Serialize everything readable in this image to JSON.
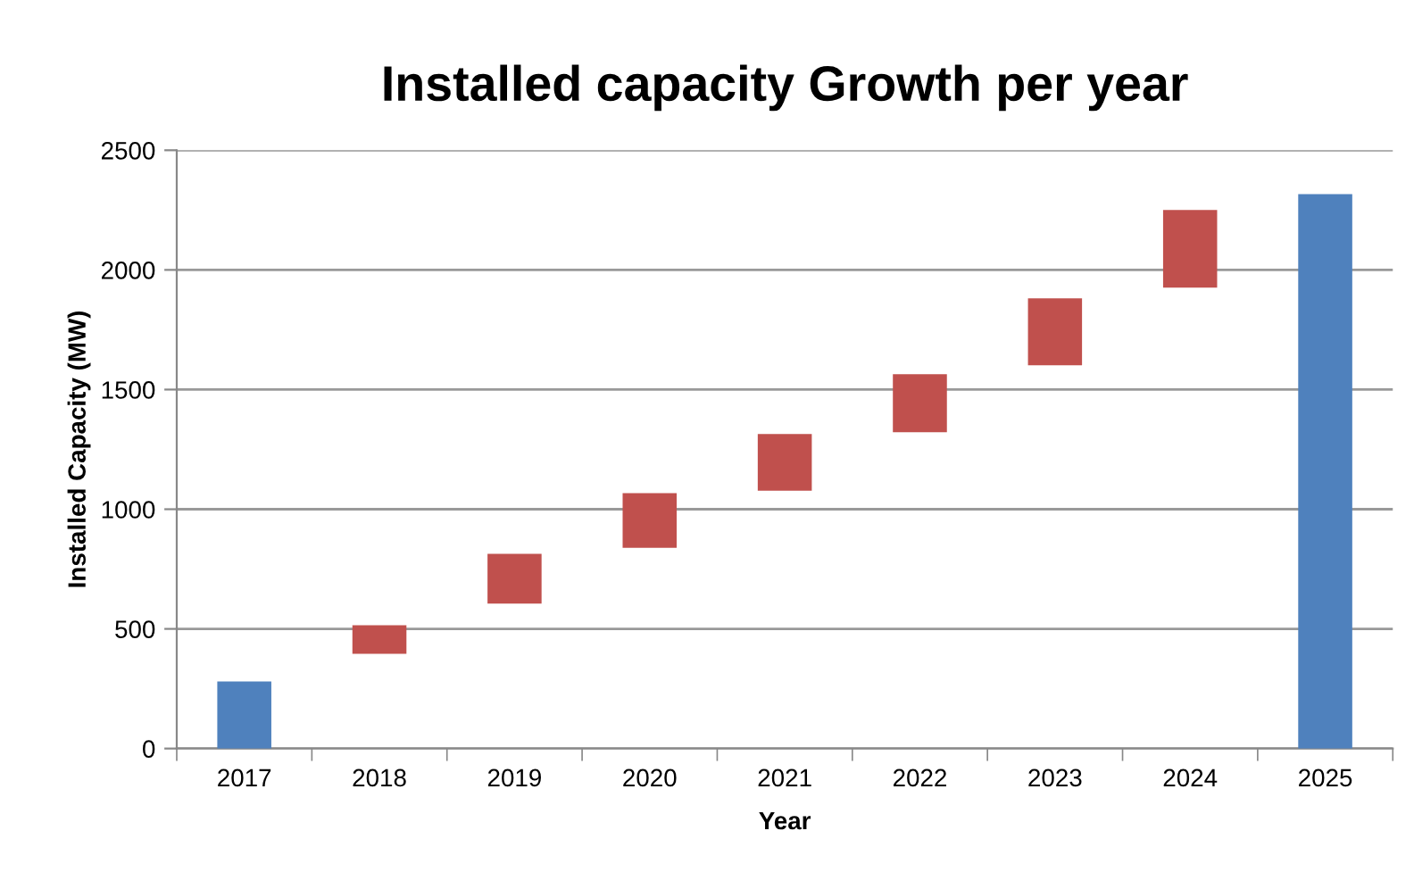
{
  "chart_data": {
    "type": "bar",
    "title": "Installed capacity Growth per year",
    "xlabel": "Year",
    "ylabel": "Installed Capacity (MW)",
    "categories": [
      "2017",
      "2018",
      "2019",
      "2020",
      "2021",
      "2022",
      "2023",
      "2024",
      "2025"
    ],
    "values": [
      280,
      119,
      208,
      228,
      237,
      242,
      280,
      324,
      2317
    ],
    "base": [
      0,
      396,
      606,
      839,
      1077,
      1322,
      1601,
      1926,
      0
    ],
    "colors": [
      "#4f81bd",
      "#c0504d",
      "#c0504d",
      "#c0504d",
      "#c0504d",
      "#c0504d",
      "#c0504d",
      "#c0504d",
      "#4f81bd"
    ],
    "ylim": [
      0,
      2500
    ],
    "yticks": [
      0,
      500,
      1000,
      1500,
      2000,
      2500
    ],
    "grid": "y",
    "legend": false
  }
}
